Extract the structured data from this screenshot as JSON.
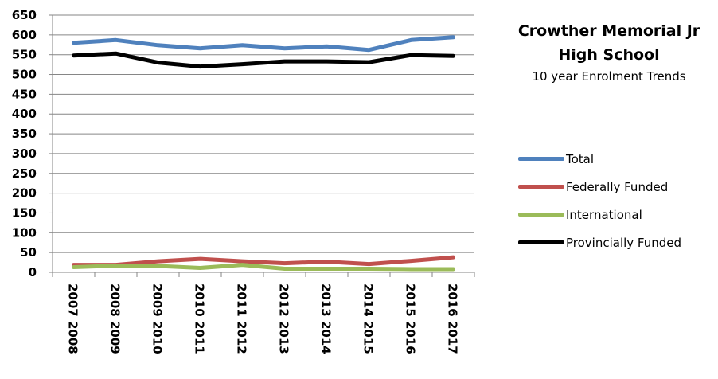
{
  "chart_data": {
    "type": "line",
    "title": "Crowther Memorial Jr High School",
    "subtitle": "10 year Enrolment Trends",
    "ylim": [
      0,
      650
    ],
    "yticks": [
      "0",
      "50",
      "100",
      "150",
      "200",
      "250",
      "300",
      "350",
      "400",
      "450",
      "500",
      "550",
      "600",
      "650"
    ],
    "categories": [
      "2007 2008",
      "2008 2009",
      "2009 2010",
      "2010 2011",
      "2011 2012",
      "2012 2013",
      "2013 2014",
      "2014 2015",
      "2015 2016",
      "2016 2017"
    ],
    "grid": true,
    "legend_position": "right",
    "series": [
      {
        "name": "Total",
        "color": "#4f81bd",
        "values": [
          580,
          587,
          574,
          566,
          574,
          566,
          571,
          562,
          587,
          594
        ]
      },
      {
        "name": "Federally Funded",
        "color": "#c0504d",
        "values": [
          19,
          19,
          28,
          34,
          28,
          23,
          27,
          21,
          29,
          38
        ]
      },
      {
        "name": "International",
        "color": "#9bbb59",
        "values": [
          13,
          17,
          16,
          11,
          19,
          9,
          9,
          9,
          8,
          8
        ]
      },
      {
        "name": "Provincially Funded",
        "color": "#000000",
        "values": [
          548,
          553,
          530,
          520,
          526,
          533,
          533,
          531,
          549,
          547
        ]
      }
    ]
  }
}
